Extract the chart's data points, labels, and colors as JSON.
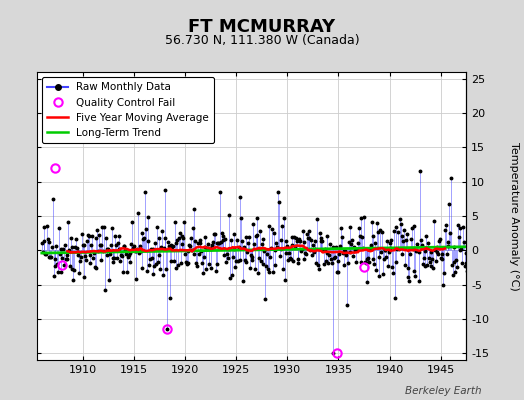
{
  "title": "FT MCMURRAY",
  "subtitle": "56.730 N, 111.380 W (Canada)",
  "ylabel": "Temperature Anomaly (°C)",
  "watermark": "Berkeley Earth",
  "ylim": [
    -16,
    26
  ],
  "xlim": [
    1905.5,
    1947.5
  ],
  "yticks": [
    -15,
    -10,
    -5,
    0,
    5,
    10,
    15,
    20,
    25
  ],
  "xticks": [
    1910,
    1915,
    1920,
    1925,
    1930,
    1935,
    1940,
    1945
  ],
  "fig_bg_color": "#d8d8d8",
  "plot_bg_color": "#ffffff",
  "raw_line_color": "#4444ff",
  "raw_dot_color": "#000000",
  "moving_avg_color": "#ff0000",
  "trend_color": "#00cc00",
  "qc_fail_color": "#ff00ff",
  "seed": 42,
  "start_year": 1906,
  "end_year": 1947,
  "qc_fail_points": [
    [
      1907.25,
      12.0
    ],
    [
      1908.0,
      -2.2
    ],
    [
      1918.25,
      -11.5
    ],
    [
      1934.83,
      -15.0
    ],
    [
      1937.5,
      -2.5
    ]
  ]
}
